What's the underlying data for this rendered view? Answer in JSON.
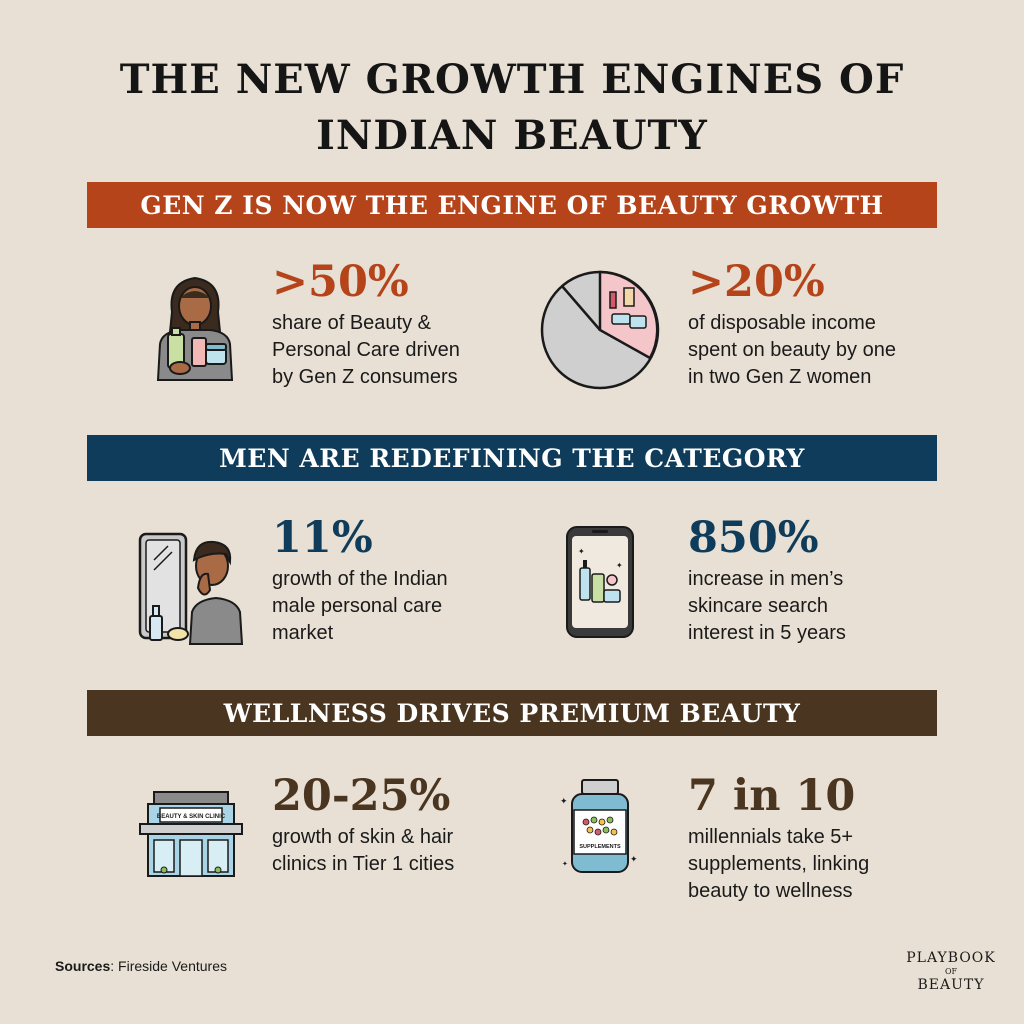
{
  "title": {
    "line1": "THE NEW GROWTH ENGINES OF",
    "line2": "INDIAN BEAUTY"
  },
  "colors": {
    "background": "#e8e0d4",
    "section1": "#b5441a",
    "section2": "#0e3c5a",
    "section3": "#4a3520"
  },
  "sections": [
    {
      "heading": "GEN Z IS NOW THE ENGINE OF BEAUTY GROWTH",
      "stats": [
        {
          "value": ">50%",
          "description": [
            "share of Beauty &",
            "Personal Care driven",
            "by Gen Z consumers"
          ],
          "icon": "woman-holding-products-icon"
        },
        {
          "value": ">20%",
          "description": [
            "of disposable income",
            "spent on beauty by one",
            "in two Gen Z women"
          ],
          "icon": "pie-chart-icon"
        }
      ]
    },
    {
      "heading": "MEN ARE REDEFINING THE CATEGORY",
      "stats": [
        {
          "value": "11%",
          "description": [
            "growth of the Indian",
            "male personal care",
            "market"
          ],
          "icon": "man-at-mirror-icon"
        },
        {
          "value": "850%",
          "description": [
            "increase in men’s",
            "skincare search",
            "interest in 5 years"
          ],
          "icon": "phone-skincare-icon"
        }
      ]
    },
    {
      "heading": "WELLNESS DRIVES PREMIUM BEAUTY",
      "stats": [
        {
          "value": "20-25%",
          "description": [
            "growth of skin & hair",
            "clinics in Tier 1 cities"
          ],
          "icon": "clinic-building-icon",
          "icon_text": "BEAUTY & SKIN CLINIC"
        },
        {
          "value": "7 in 10",
          "description": [
            "millennials take 5+",
            "supplements, linking",
            "beauty to wellness"
          ],
          "icon": "supplements-bottle-icon",
          "icon_text": "SUPPLEMENTS"
        }
      ]
    }
  ],
  "sources": {
    "label": "Sources",
    "text": ": Fireside Ventures"
  },
  "logo": {
    "line1": "PLAYBOOK",
    "line2": "OF",
    "line3": "BEAUTY"
  }
}
